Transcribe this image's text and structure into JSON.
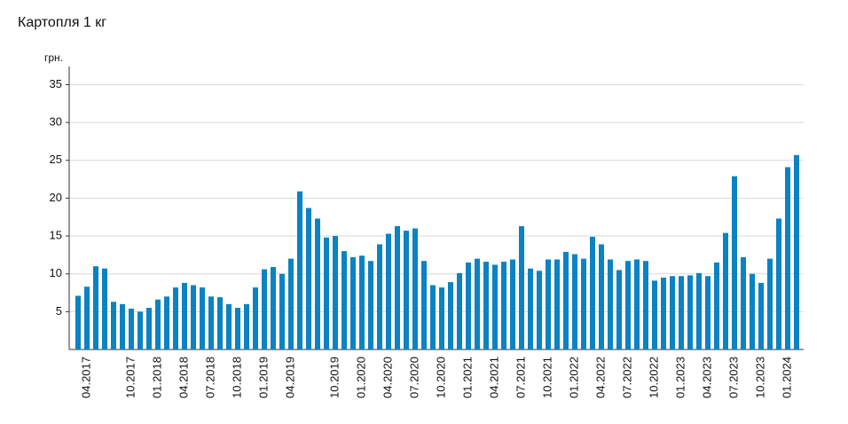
{
  "chart_data": {
    "type": "bar",
    "title": "Картопля 1 кг",
    "y_label": "грн.",
    "categories": [
      null,
      "04.2017",
      null,
      null,
      null,
      null,
      "10.2017",
      null,
      null,
      "01.2018",
      null,
      null,
      "04.2018",
      null,
      null,
      "07.2018",
      null,
      null,
      "10.2018",
      null,
      null,
      "01.2019",
      null,
      null,
      "04.2019",
      null,
      null,
      null,
      null,
      "10.2019",
      null,
      null,
      "01.2020",
      null,
      null,
      "04.2020",
      null,
      null,
      "07.2020",
      null,
      null,
      "10.2020",
      null,
      null,
      "01.2021",
      null,
      null,
      "04.2021",
      null,
      null,
      "07.2021",
      null,
      null,
      "10.2021",
      null,
      null,
      "01.2022",
      null,
      null,
      "04.2022",
      null,
      null,
      "07.2022",
      null,
      null,
      "10.2022",
      null,
      null,
      "01.2023",
      null,
      null,
      "04.2023",
      null,
      null,
      "07.2023",
      null,
      null,
      "10.2023",
      null,
      null,
      "01.2024",
      null
    ],
    "values": [
      7.1,
      8.3,
      11.0,
      10.7,
      6.3,
      6.0,
      5.4,
      5.0,
      5.5,
      6.6,
      7.0,
      8.2,
      8.8,
      8.5,
      8.2,
      7.0,
      6.9,
      6.0,
      5.5,
      6.0,
      8.2,
      10.6,
      10.9,
      10.0,
      12.0,
      20.9,
      18.7,
      17.3,
      14.8,
      15.0,
      13.0,
      12.2,
      12.4,
      11.7,
      13.9,
      15.3,
      16.3,
      15.7,
      16.0,
      11.7,
      8.5,
      8.2,
      8.9,
      10.1,
      11.5,
      12.0,
      11.6,
      11.2,
      11.6,
      11.9,
      16.3,
      10.7,
      10.4,
      11.9,
      11.9,
      12.9,
      12.6,
      12.0,
      14.9,
      13.9,
      11.9,
      10.5,
      11.7,
      11.9,
      11.7,
      9.1,
      9.5,
      9.7,
      9.7,
      9.8,
      10.1,
      9.7,
      11.5,
      15.4,
      22.9,
      12.2,
      10.0,
      8.8,
      12.0,
      17.3,
      24.1,
      25.7
    ],
    "color": "#0a82c3",
    "ylim": [
      0,
      37.4
    ],
    "yticks": [
      5,
      10,
      15,
      20,
      25,
      30,
      35
    ],
    "grid": true
  }
}
